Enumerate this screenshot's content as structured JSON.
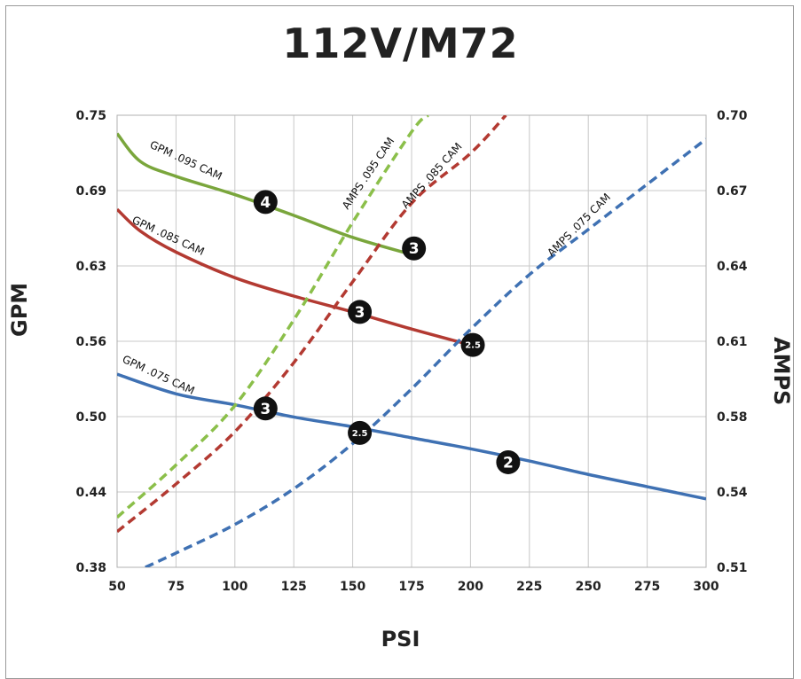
{
  "chart_data": {
    "type": "line",
    "title": "112V/M72",
    "xlabel": "PSI",
    "ylabel": "GPM",
    "y2label": "AMPS",
    "xlim": [
      50,
      300
    ],
    "ylim": [
      0.38,
      0.75
    ],
    "y2lim": [
      0.51,
      0.7
    ],
    "xticks": [
      "50",
      "75",
      "100",
      "125",
      "150",
      "175",
      "200",
      "225",
      "250",
      "275",
      "300"
    ],
    "yticks": [
      "0.38",
      "0.44",
      "0.50",
      "0.56",
      "0.63",
      "0.69",
      "0.75"
    ],
    "y2ticks": [
      "0.51",
      "0.54",
      "0.58",
      "0.61",
      "0.64",
      "0.67",
      "0.70"
    ],
    "grid": true,
    "series": [
      {
        "name": "GPM .095 CAM",
        "axis": "left",
        "style": "solid",
        "color": "#7aa63c",
        "x": [
          50,
          60,
          75,
          100,
          125,
          150,
          175
        ],
        "y": [
          0.735,
          0.712,
          0.7,
          0.685,
          0.668,
          0.65,
          0.636
        ]
      },
      {
        "name": "GPM .085 CAM",
        "axis": "left",
        "style": "solid",
        "color": "#b33a32",
        "x": [
          50,
          60,
          75,
          100,
          125,
          150,
          175,
          200
        ],
        "y": [
          0.673,
          0.655,
          0.638,
          0.617,
          0.602,
          0.589,
          0.575,
          0.562
        ]
      },
      {
        "name": "GPM .075 CAM",
        "axis": "left",
        "style": "solid",
        "color": "#3f71b3",
        "x": [
          50,
          75,
          100,
          125,
          150,
          175,
          200,
          225,
          250,
          275,
          300
        ],
        "y": [
          0.538,
          0.522,
          0.513,
          0.503,
          0.495,
          0.486,
          0.477,
          0.467,
          0.456,
          0.446,
          0.436
        ]
      },
      {
        "name": "AMPS .095 CAM",
        "axis": "right",
        "style": "dashed",
        "color": "#8bbf4a",
        "x": [
          50,
          75,
          100,
          125,
          150,
          175,
          182
        ],
        "y": [
          0.531,
          0.553,
          0.578,
          0.614,
          0.655,
          0.693,
          0.7
        ]
      },
      {
        "name": "AMPS .085 CAM",
        "axis": "right",
        "style": "dashed",
        "color": "#b33a32",
        "x": [
          50,
          75,
          100,
          125,
          150,
          175,
          200,
          215
        ],
        "y": [
          0.525,
          0.545,
          0.567,
          0.596,
          0.63,
          0.663,
          0.684,
          0.7
        ]
      },
      {
        "name": "AMPS .075 CAM",
        "axis": "right",
        "style": "dashed",
        "color": "#3f71b3",
        "x": [
          62,
          75,
          100,
          125,
          150,
          175,
          200,
          225,
          250,
          275,
          300
        ],
        "y": [
          0.51,
          0.516,
          0.528,
          0.543,
          0.562,
          0.585,
          0.61,
          0.633,
          0.652,
          0.671,
          0.69
        ]
      }
    ],
    "markers": [
      {
        "label": "4",
        "x": 113,
        "y": 0.679
      },
      {
        "label": "3",
        "x": 176,
        "y": 0.641
      },
      {
        "label": "3",
        "x": 153,
        "y": 0.589
      },
      {
        "label": "2.5",
        "x": 201,
        "y": 0.562
      },
      {
        "label": "3",
        "x": 113,
        "y": 0.51
      },
      {
        "label": "2.5",
        "x": 153,
        "y": 0.49
      },
      {
        "label": "2",
        "x": 216,
        "y": 0.466
      }
    ]
  }
}
